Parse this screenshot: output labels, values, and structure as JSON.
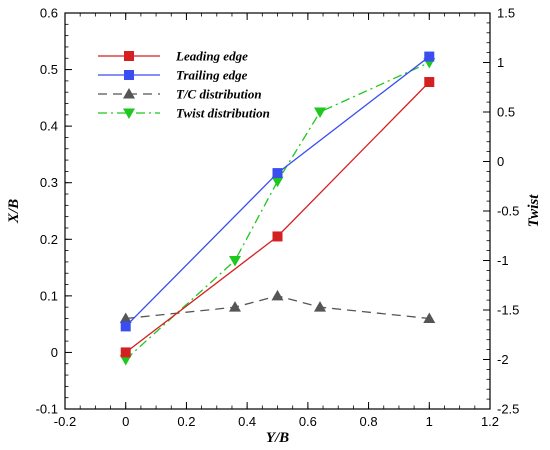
{
  "chart_data": {
    "type": "line",
    "title": "",
    "xlabel": "Y/B",
    "ylabel": "X/B",
    "y2label": "Twist",
    "xlim": [
      -0.2,
      1.2
    ],
    "ylim": [
      -0.1,
      0.6
    ],
    "y2lim": [
      -2.5,
      1.5
    ],
    "xticks": [
      "-0.2",
      "0",
      "0.2",
      "0.4",
      "0.6",
      "0.8",
      "1",
      "1.2"
    ],
    "yticks": [
      "-0.1",
      "0",
      "0.1",
      "0.2",
      "0.3",
      "0.4",
      "0.5",
      "0.6"
    ],
    "y2ticks": [
      "-2.5",
      "-2",
      "-1.5",
      "-1",
      "-0.5",
      "0",
      "0.5",
      "1",
      "1.5"
    ],
    "grid": false,
    "legend_position": "top-left",
    "series": [
      {
        "name": "Leading edge",
        "axis": "left",
        "color": "#d42020",
        "line": "solid",
        "marker": "square",
        "x": [
          0,
          0.5,
          1
        ],
        "y": [
          0,
          0.205,
          0.478
        ]
      },
      {
        "name": "Trailing edge",
        "axis": "left",
        "color": "#3a4ef0",
        "line": "solid",
        "marker": "square",
        "x": [
          0,
          0.5,
          1
        ],
        "y": [
          0.046,
          0.317,
          0.523
        ]
      },
      {
        "name": "T/C distribution",
        "axis": "left",
        "color": "#555555",
        "line": "dashed",
        "marker": "triangle-up",
        "x": [
          0,
          0.36,
          0.5,
          0.64,
          1
        ],
        "y": [
          0.06,
          0.08,
          0.1,
          0.08,
          0.06
        ]
      },
      {
        "name": "Twist distribution",
        "axis": "right",
        "color": "#1ec81e",
        "line": "dashdot",
        "marker": "triangle-down",
        "x": [
          0,
          0.36,
          0.5,
          0.64,
          1
        ],
        "y": [
          -2.0,
          -1.0,
          -0.2,
          0.5,
          1.0
        ]
      }
    ]
  }
}
